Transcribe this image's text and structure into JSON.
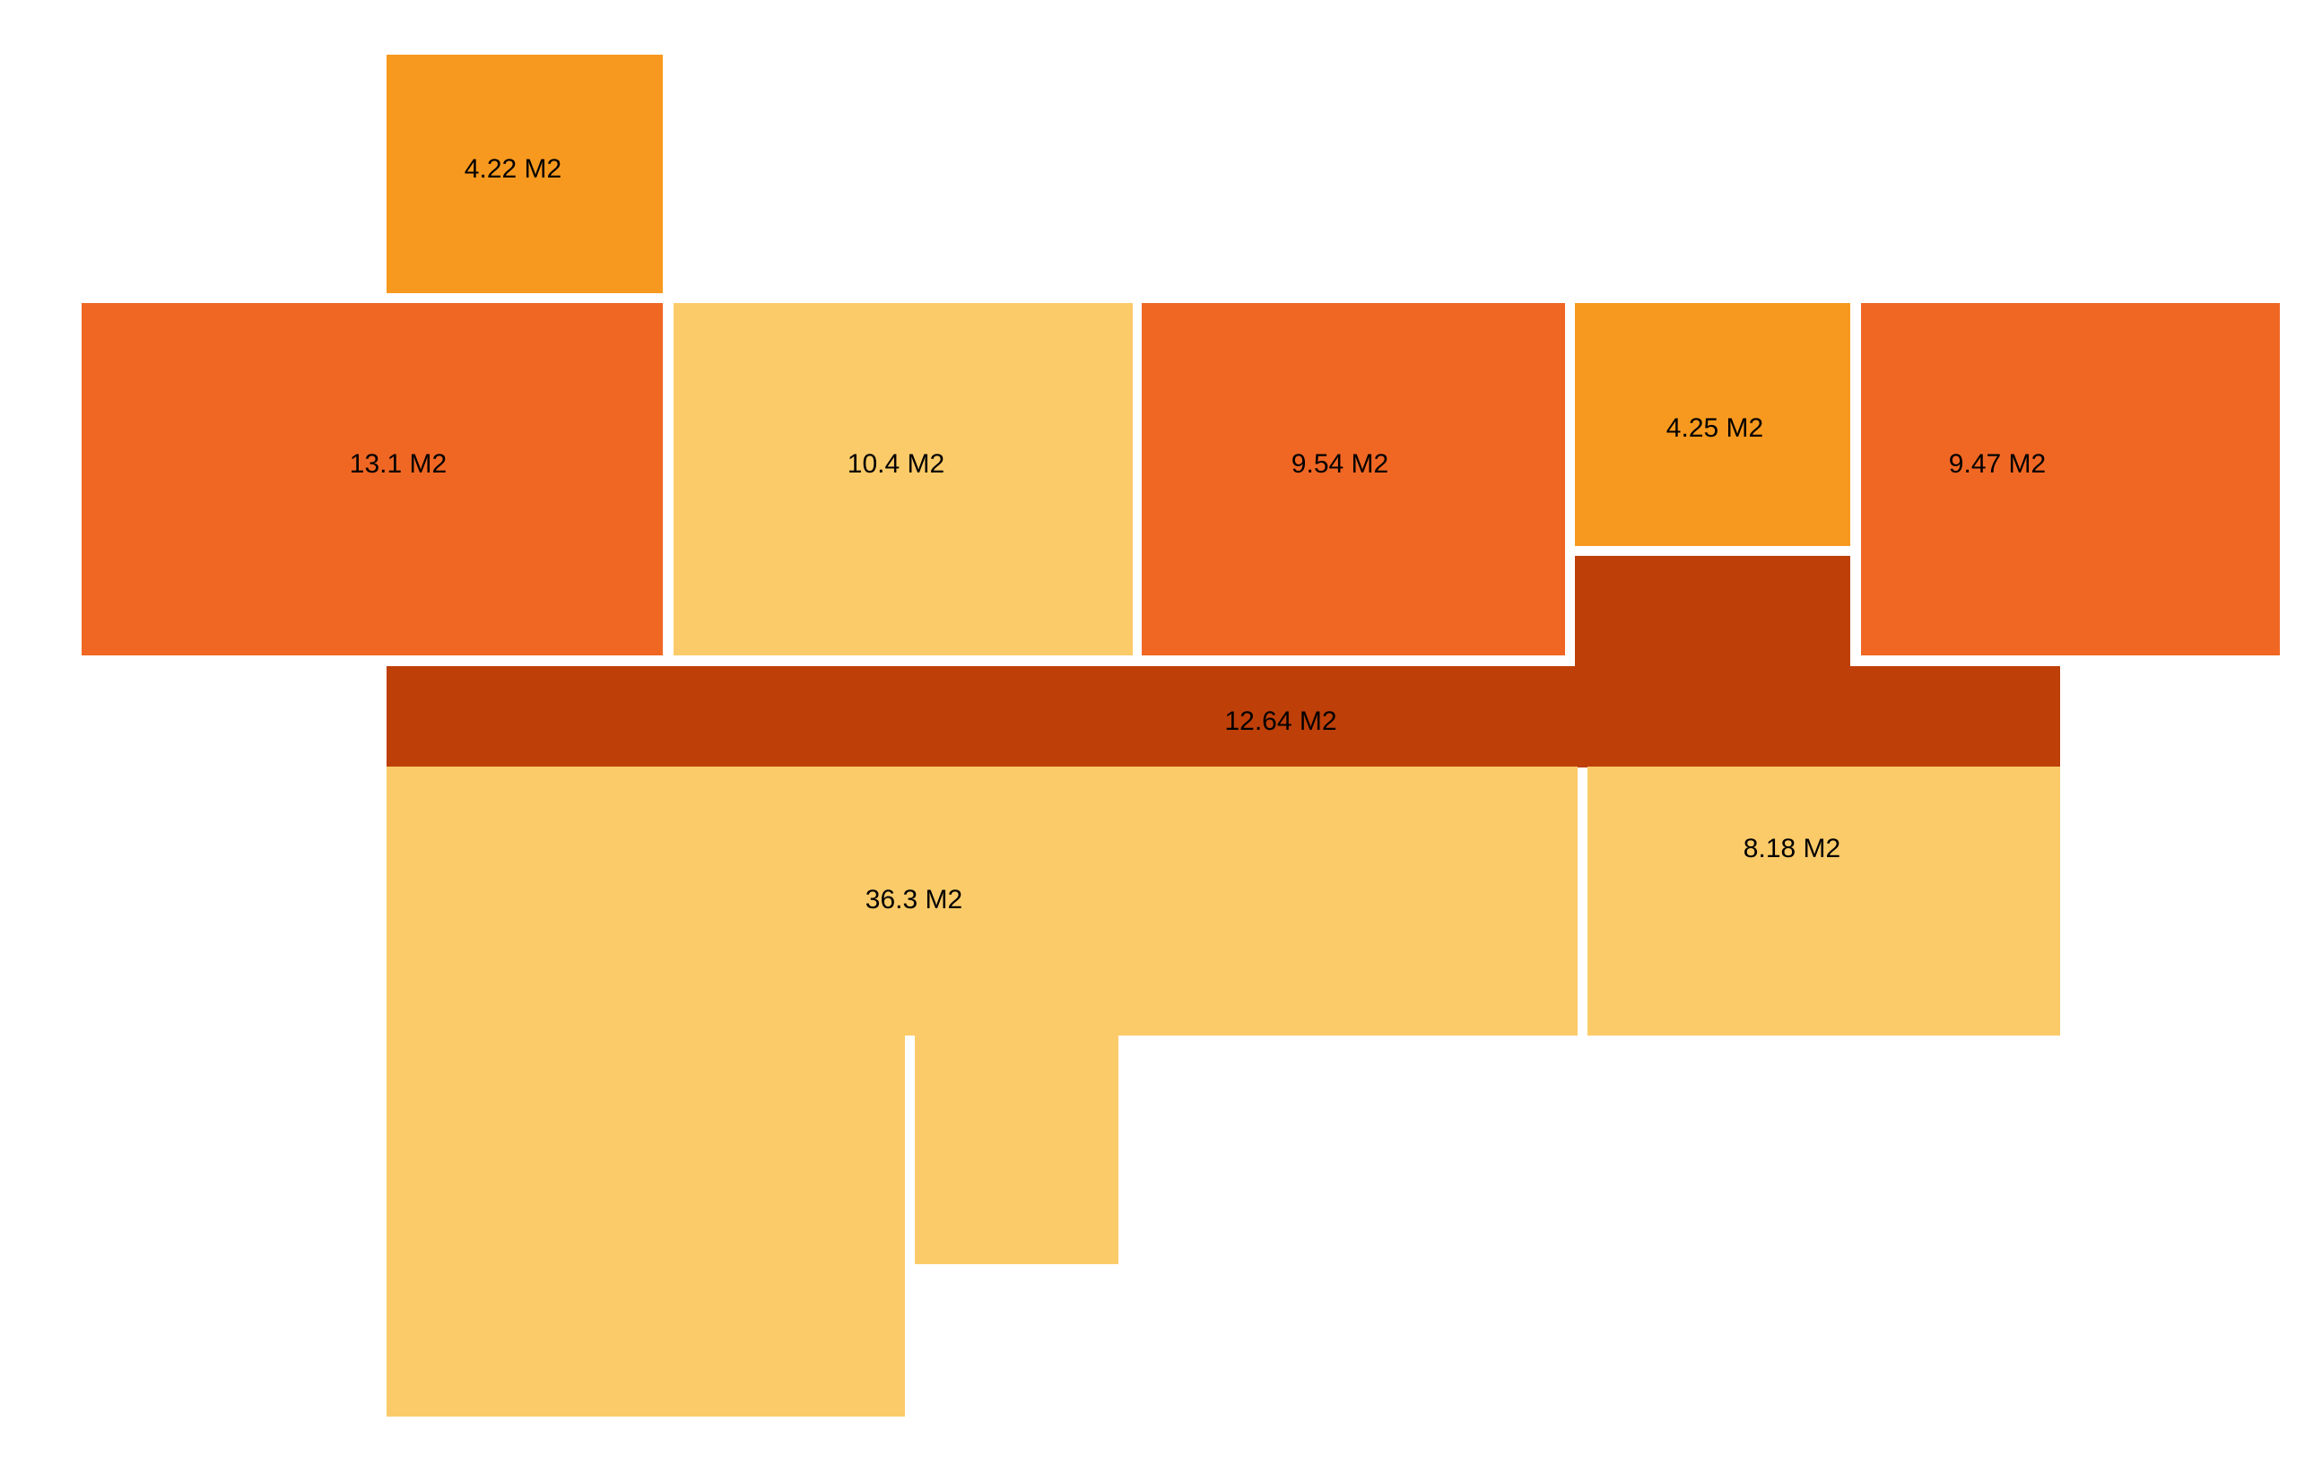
{
  "colors": {
    "light": "#FCCB69",
    "mid": "#F8991F",
    "orange": "#F06724",
    "dark": "#BE3F08"
  },
  "rooms": [
    {
      "id": "room-1",
      "label": "4.22 M2",
      "tone": "mid"
    },
    {
      "id": "room-2",
      "label": "13.1 M2",
      "tone": "orange"
    },
    {
      "id": "room-3",
      "label": "10.4 M2",
      "tone": "light"
    },
    {
      "id": "room-4",
      "label": "9.54 M2",
      "tone": "orange"
    },
    {
      "id": "room-5",
      "label": "4.25 M2",
      "tone": "mid"
    },
    {
      "id": "room-6",
      "label": "9.47 M2",
      "tone": "orange"
    },
    {
      "id": "room-7",
      "label": "12.64 M2",
      "tone": "dark"
    },
    {
      "id": "room-8",
      "label": "36.3 M2",
      "tone": "light"
    },
    {
      "id": "room-9",
      "label": "8.18 M2",
      "tone": "light"
    }
  ]
}
